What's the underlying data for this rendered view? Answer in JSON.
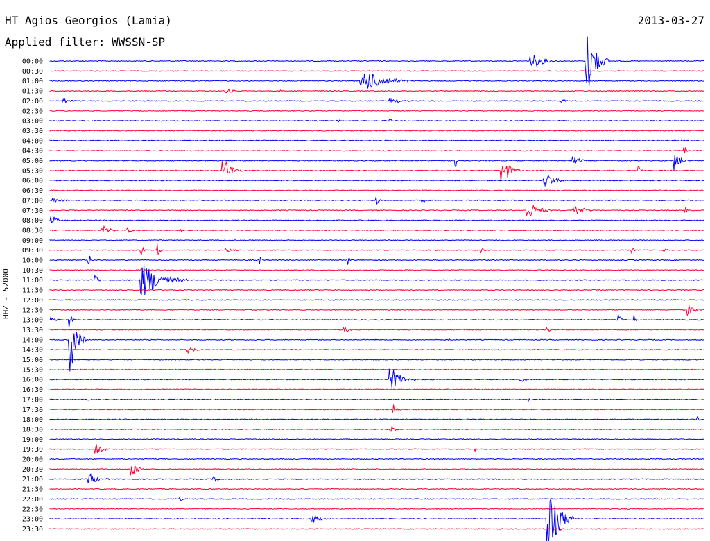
{
  "header": {
    "station": "HT Agios Georgios (Lamia)",
    "date": "2013-03-27",
    "filter": "Applied filter: WWSSN-SP"
  },
  "channel_label": "HHZ - 52000",
  "colors": {
    "even_row": "#0000ff",
    "odd_row": "#ff0033"
  },
  "chart_data": {
    "type": "line",
    "title": "HT Agios Georgios (Lamia)",
    "subtitle": "Applied filter: WWSSN-SP",
    "xlabel": "",
    "ylabel": "HHZ - 52000",
    "grid": false,
    "legend": "none",
    "rows": [
      {
        "label": "00:00",
        "color": "blue",
        "events": [
          {
            "t": 0.05,
            "a": 2
          },
          {
            "t": 0.235,
            "a": 3
          },
          {
            "t": 0.735,
            "a": 9,
            "d": 0.05
          },
          {
            "t": 0.82,
            "a": 45,
            "d": 0.035
          }
        ]
      },
      {
        "label": "00:30",
        "color": "red",
        "events": []
      },
      {
        "label": "01:00",
        "color": "blue",
        "events": [
          {
            "t": 0.475,
            "a": 16,
            "d": 0.08
          }
        ]
      },
      {
        "label": "01:30",
        "color": "red",
        "events": [
          {
            "t": 0.27,
            "a": 3,
            "d": 0.03
          },
          {
            "t": 0.35,
            "a": 2
          }
        ]
      },
      {
        "label": "02:00",
        "color": "blue",
        "events": [
          {
            "t": 0.02,
            "a": 3,
            "d": 0.04
          },
          {
            "t": 0.52,
            "a": 3,
            "d": 0.06
          },
          {
            "t": 0.78,
            "a": 3,
            "d": 0.02
          }
        ]
      },
      {
        "label": "02:30",
        "color": "red",
        "events": []
      },
      {
        "label": "03:00",
        "color": "blue",
        "events": [
          {
            "t": 0.44,
            "a": 2
          },
          {
            "t": 0.52,
            "a": 3
          }
        ]
      },
      {
        "label": "03:30",
        "color": "red",
        "events": []
      },
      {
        "label": "04:00",
        "color": "blue",
        "events": []
      },
      {
        "label": "04:30",
        "color": "red",
        "events": [
          {
            "t": 0.97,
            "a": 6
          }
        ]
      },
      {
        "label": "05:00",
        "color": "blue",
        "events": [
          {
            "t": 0.62,
            "a": 10
          },
          {
            "t": 0.8,
            "a": 5,
            "d": 0.03
          },
          {
            "t": 0.955,
            "a": 14,
            "d": 0.02
          }
        ]
      },
      {
        "label": "05:30",
        "color": "red",
        "events": [
          {
            "t": 0.265,
            "a": 16,
            "d": 0.03
          },
          {
            "t": 0.69,
            "a": 20,
            "d": 0.03
          },
          {
            "t": 0.9,
            "a": 10
          }
        ]
      },
      {
        "label": "06:00",
        "color": "blue",
        "events": [
          {
            "t": 0.755,
            "a": 12,
            "d": 0.035
          }
        ]
      },
      {
        "label": "06:30",
        "color": "red",
        "events": []
      },
      {
        "label": "07:00",
        "color": "blue",
        "events": [
          {
            "t": 0.005,
            "a": 3,
            "d": 0.05
          },
          {
            "t": 0.5,
            "a": 8
          },
          {
            "t": 0.57,
            "a": 4
          }
        ]
      },
      {
        "label": "07:30",
        "color": "red",
        "events": [
          {
            "t": 0.73,
            "a": 12,
            "d": 0.04
          },
          {
            "t": 0.8,
            "a": 8,
            "d": 0.04
          },
          {
            "t": 0.97,
            "a": 6
          }
        ]
      },
      {
        "label": "08:00",
        "color": "blue",
        "events": [
          {
            "t": 0.003,
            "a": 7,
            "d": 0.02
          }
        ]
      },
      {
        "label": "08:30",
        "color": "red",
        "events": [
          {
            "t": 0.08,
            "a": 6,
            "d": 0.03
          },
          {
            "t": 0.12,
            "a": 3,
            "d": 0.02
          },
          {
            "t": 0.2,
            "a": 2
          }
        ]
      },
      {
        "label": "09:00",
        "color": "blue",
        "events": []
      },
      {
        "label": "09:30",
        "color": "red",
        "events": [
          {
            "t": 0.14,
            "a": 7
          },
          {
            "t": 0.165,
            "a": 9
          },
          {
            "t": 0.27,
            "a": 3,
            "d": 0.03
          },
          {
            "t": 0.66,
            "a": 4
          },
          {
            "t": 0.89,
            "a": 4
          },
          {
            "t": 0.94,
            "a": 4
          }
        ]
      },
      {
        "label": "10:00",
        "color": "blue",
        "events": [
          {
            "t": 0.06,
            "a": 8
          },
          {
            "t": 0.32,
            "a": 8
          },
          {
            "t": 0.455,
            "a": 7
          }
        ]
      },
      {
        "label": "10:30",
        "color": "red",
        "events": [
          {
            "t": 0.14,
            "a": 4
          }
        ]
      },
      {
        "label": "11:00",
        "color": "blue",
        "events": [
          {
            "t": 0.07,
            "a": 12
          },
          {
            "t": 0.14,
            "a": 24,
            "d": 0.07
          }
        ]
      },
      {
        "label": "11:30",
        "color": "red",
        "events": []
      },
      {
        "label": "12:00",
        "color": "blue",
        "events": []
      },
      {
        "label": "12:30",
        "color": "red",
        "events": [
          {
            "t": 0.975,
            "a": 8,
            "d": 0.025
          }
        ]
      },
      {
        "label": "13:00",
        "color": "blue",
        "events": [
          {
            "t": 0.003,
            "a": 4,
            "d": 0.02
          },
          {
            "t": 0.03,
            "a": 14
          },
          {
            "t": 0.87,
            "a": 8
          },
          {
            "t": 0.89,
            "a": 14
          }
        ]
      },
      {
        "label": "13:30",
        "color": "red",
        "events": [
          {
            "t": 0.45,
            "a": 4,
            "d": 0.02
          },
          {
            "t": 0.76,
            "a": 6
          }
        ]
      },
      {
        "label": "14:00",
        "color": "blue",
        "events": [
          {
            "t": 0.03,
            "a": 46,
            "d": 0.025
          },
          {
            "t": 0.61,
            "a": 3
          }
        ]
      },
      {
        "label": "14:30",
        "color": "red",
        "events": [
          {
            "t": 0.21,
            "a": 5,
            "d": 0.03
          }
        ]
      },
      {
        "label": "15:00",
        "color": "blue",
        "events": []
      },
      {
        "label": "15:30",
        "color": "red",
        "events": []
      },
      {
        "label": "16:00",
        "color": "blue",
        "events": [
          {
            "t": 0.52,
            "a": 16,
            "d": 0.04
          },
          {
            "t": 0.72,
            "a": 3,
            "d": 0.03
          }
        ]
      },
      {
        "label": "16:30",
        "color": "red",
        "events": []
      },
      {
        "label": "17:00",
        "color": "blue",
        "events": [
          {
            "t": 0.06,
            "a": 3
          },
          {
            "t": 0.73,
            "a": 4
          }
        ]
      },
      {
        "label": "17:30",
        "color": "red",
        "events": [
          {
            "t": 0.525,
            "a": 7,
            "d": 0.015
          }
        ]
      },
      {
        "label": "18:00",
        "color": "blue",
        "events": [
          {
            "t": 0.99,
            "a": 4
          }
        ]
      },
      {
        "label": "18:30",
        "color": "red",
        "events": [
          {
            "t": 0.52,
            "a": 7,
            "d": 0.015
          }
        ]
      },
      {
        "label": "19:00",
        "color": "blue",
        "events": []
      },
      {
        "label": "19:30",
        "color": "red",
        "events": [
          {
            "t": 0.07,
            "a": 8,
            "d": 0.025
          },
          {
            "t": 0.65,
            "a": 3
          }
        ]
      },
      {
        "label": "20:00",
        "color": "blue",
        "events": []
      },
      {
        "label": "20:30",
        "color": "red",
        "events": [
          {
            "t": 0.125,
            "a": 14,
            "d": 0.02
          }
        ]
      },
      {
        "label": "21:00",
        "color": "blue",
        "events": [
          {
            "t": 0.06,
            "a": 7,
            "d": 0.04
          },
          {
            "t": 0.25,
            "a": 3,
            "d": 0.03
          }
        ]
      },
      {
        "label": "21:30",
        "color": "red",
        "events": []
      },
      {
        "label": "22:00",
        "color": "blue",
        "events": [
          {
            "t": 0.2,
            "a": 3
          }
        ]
      },
      {
        "label": "22:30",
        "color": "red",
        "events": []
      },
      {
        "label": "23:00",
        "color": "blue",
        "events": [
          {
            "t": 0.4,
            "a": 6,
            "d": 0.03
          },
          {
            "t": 0.76,
            "a": 50,
            "d": 0.04
          }
        ]
      },
      {
        "label": "23:30",
        "color": "red",
        "events": [
          {
            "t": 0.78,
            "a": 3
          }
        ]
      }
    ]
  }
}
